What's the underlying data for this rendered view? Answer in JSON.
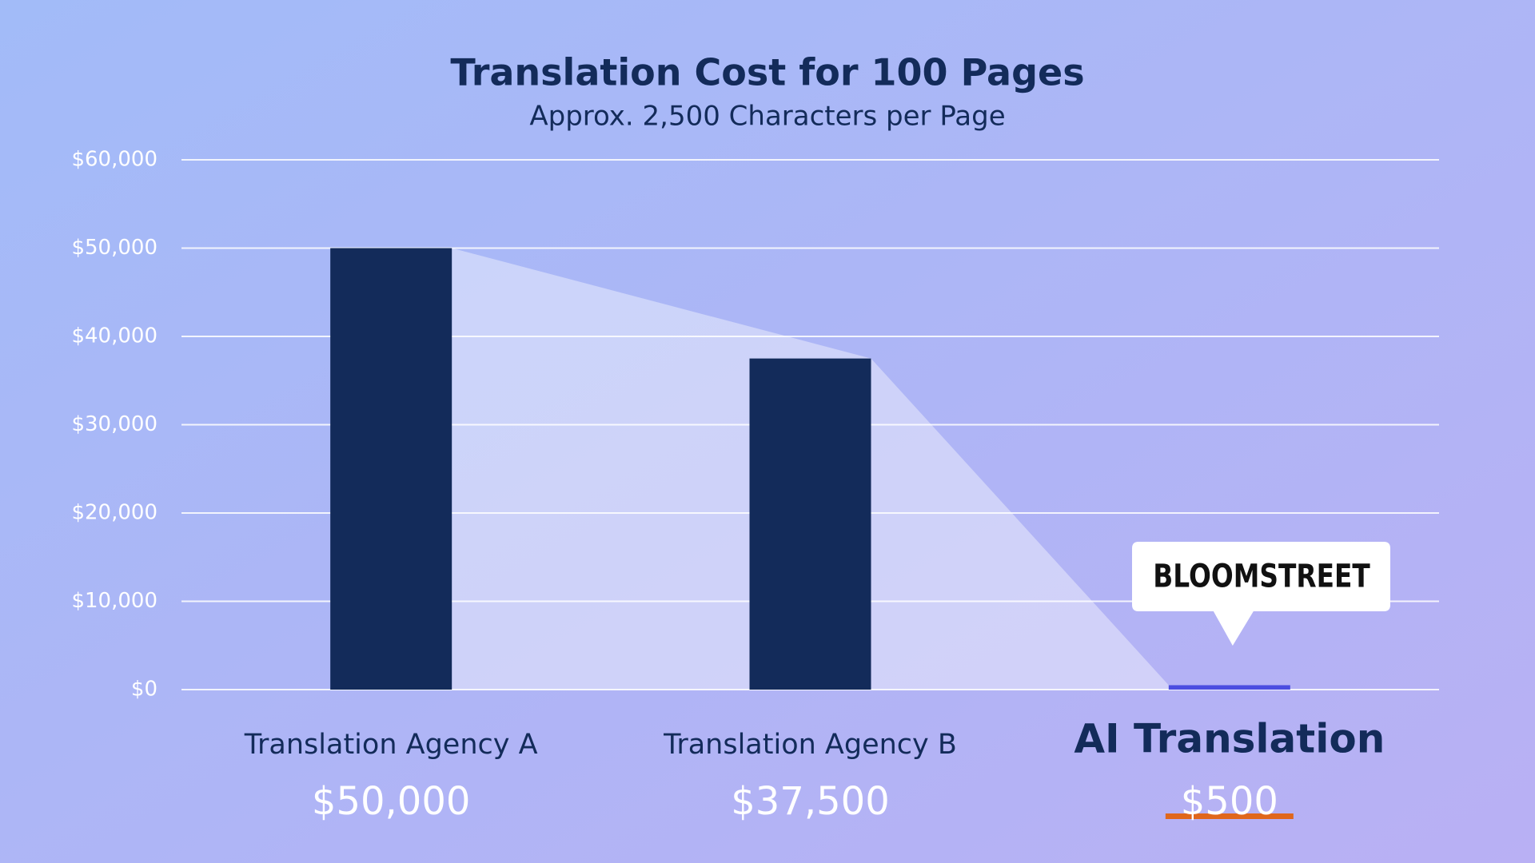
{
  "chart_data": {
    "type": "bar",
    "title": "Translation Cost for 100 Pages",
    "subtitle": "Approx. 2,500 Characters per Page",
    "categories": [
      "Translation Agency A",
      "Translation Agency B",
      "AI Translation"
    ],
    "values": [
      50000,
      37500,
      500
    ],
    "value_labels": [
      "$50,000",
      "$37,500",
      "$500"
    ],
    "colors": [
      "#132b5a",
      "#132b5a",
      "#4b4de0"
    ],
    "ylim": [
      0,
      60000
    ],
    "yticks": [
      {
        "value": 0,
        "label": "$0"
      },
      {
        "value": 10000,
        "label": "$10,000"
      },
      {
        "value": 20000,
        "label": "$20,000"
      },
      {
        "value": 30000,
        "label": "$30,000"
      },
      {
        "value": 40000,
        "label": "$40,000"
      },
      {
        "value": 50000,
        "label": "$50,000"
      },
      {
        "value": 60000,
        "label": "$60,000"
      }
    ],
    "grid": true,
    "logo": "BLOOMSTREET"
  }
}
